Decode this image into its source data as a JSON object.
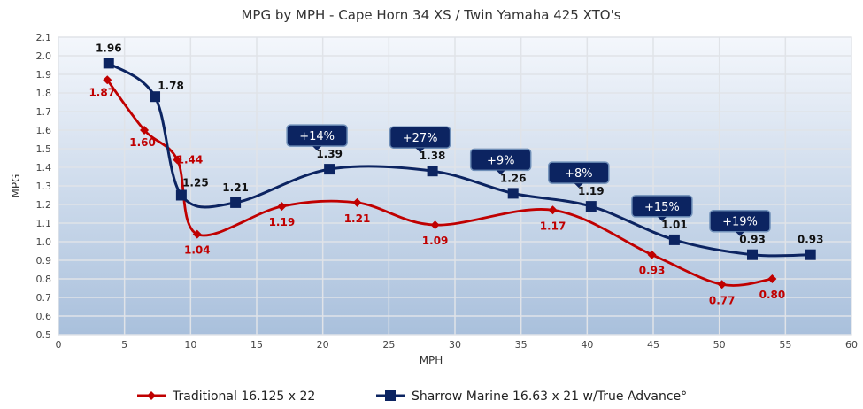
{
  "chart_data": {
    "type": "line",
    "title": "MPG by MPH - Cape Horn 34 XS / Twin Yamaha 425 XTO's",
    "xlabel": "MPH",
    "ylabel": "MPG",
    "xlim": [
      0,
      60
    ],
    "ylim": [
      0.5,
      2.1
    ],
    "xticks": [
      0,
      5,
      10,
      15,
      20,
      25,
      30,
      35,
      40,
      45,
      50,
      55,
      60
    ],
    "yticks": [
      0.5,
      0.6,
      0.7,
      0.8,
      0.9,
      1.0,
      1.1,
      1.2,
      1.3,
      1.4,
      1.5,
      1.6,
      1.7,
      1.8,
      1.9,
      2.0,
      2.1
    ],
    "grid": true,
    "legend_position": "bottom",
    "series": [
      {
        "name": "Traditional 16.125 x 22",
        "color": "#c00000",
        "marker": "diamond",
        "x": [
          3.7,
          6.5,
          9.0,
          10.5,
          16.9,
          22.6,
          28.5,
          37.4,
          44.9,
          50.2,
          54.0
        ],
        "y": [
          1.87,
          1.6,
          1.44,
          1.04,
          1.19,
          1.21,
          1.09,
          1.17,
          0.93,
          0.77,
          0.8
        ],
        "labels": [
          "1.87",
          "1.60",
          "1.44",
          "1.04",
          "1.19",
          "1.21",
          "1.09",
          "1.17",
          "0.93",
          "0.77",
          "0.80"
        ]
      },
      {
        "name": "Sharrow Marine 16.63 x 21 w/True Advance°",
        "color": "#0c2461",
        "marker": "square",
        "x": [
          3.8,
          7.3,
          9.3,
          13.4,
          20.5,
          28.3,
          34.4,
          40.3,
          46.6,
          52.5,
          56.9
        ],
        "y": [
          1.96,
          1.78,
          1.25,
          1.21,
          1.39,
          1.38,
          1.26,
          1.19,
          1.01,
          0.93,
          0.93
        ],
        "labels": [
          "1.96",
          "1.78",
          "1.25",
          "1.21",
          "1.39",
          "1.38",
          "1.26",
          "1.19",
          "1.01",
          "0.93",
          "0.93"
        ]
      }
    ],
    "annotations": [
      {
        "text": "+14%",
        "series": 1,
        "point": 4
      },
      {
        "text": "+27%",
        "series": 1,
        "point": 5
      },
      {
        "text": "+9%",
        "series": 1,
        "point": 6
      },
      {
        "text": "+8%",
        "series": 1,
        "point": 7
      },
      {
        "text": "+15%",
        "series": 1,
        "point": 8
      },
      {
        "text": "+19%",
        "series": 1,
        "point": 9
      }
    ]
  }
}
